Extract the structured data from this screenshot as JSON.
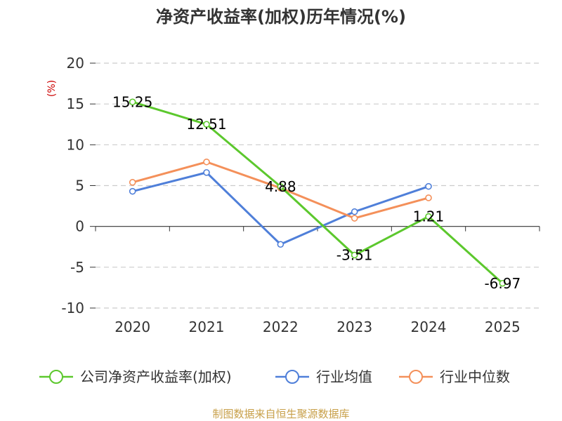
{
  "chart_data": {
    "type": "line",
    "title": "净资产收益率(加权)历年情况(%)",
    "ylabel": "(%)",
    "xlabel": "",
    "categories": [
      "2020",
      "2021",
      "2022",
      "2023",
      "2024",
      "2025"
    ],
    "ylim": [
      -10,
      20
    ],
    "yticks": [
      20,
      15,
      10,
      5,
      0,
      -5,
      -10
    ],
    "grid": true,
    "legend_position": "bottom",
    "series": [
      {
        "name": "公司净资产收益率(加权)",
        "color": "#5cc82d",
        "values": [
          15.25,
          12.51,
          4.88,
          -3.51,
          1.21,
          -6.97
        ],
        "labels": [
          "15.25",
          "12.51",
          "4.88",
          "-3.51",
          "1.21",
          "-6.97"
        ]
      },
      {
        "name": "行业均值",
        "color": "#4f7fd9",
        "values": [
          4.3,
          6.6,
          -2.2,
          1.8,
          4.9,
          null
        ]
      },
      {
        "name": "行业中位数",
        "color": "#f4905a",
        "values": [
          5.4,
          7.9,
          4.7,
          1.0,
          3.5,
          null
        ]
      }
    ]
  },
  "source": "制图数据来自恒生聚源数据库"
}
